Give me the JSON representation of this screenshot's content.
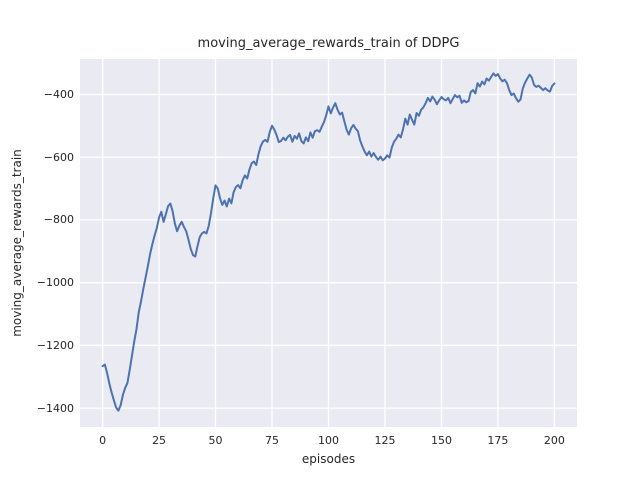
{
  "chart_data": {
    "type": "line",
    "title": "moving_average_rewards_train of DDPG",
    "xlabel": "episodes",
    "ylabel": "moving_average_rewards_train",
    "xlim": [
      -10,
      210
    ],
    "ylim": [
      -1460,
      -287
    ],
    "xticks": [
      0,
      25,
      50,
      75,
      100,
      125,
      150,
      175,
      200
    ],
    "yticks": [
      -1400,
      -1200,
      -1000,
      -800,
      -600,
      -400
    ],
    "grid": true,
    "legend": false,
    "style": {
      "figure_bg": "#FFFFFF",
      "axes_bg": "#EAEAF2",
      "grid_color": "#FFFFFF",
      "line_color": "#4C72B0",
      "text_color": "#262626"
    },
    "series": [
      {
        "name": "moving_average_rewards_train",
        "x": [
          0,
          1,
          2,
          3,
          4,
          5,
          6,
          7,
          8,
          9,
          10,
          11,
          12,
          13,
          14,
          15,
          16,
          17,
          18,
          19,
          20,
          21,
          22,
          23,
          24,
          25,
          26,
          27,
          28,
          29,
          30,
          31,
          32,
          33,
          34,
          35,
          36,
          37,
          38,
          39,
          40,
          41,
          42,
          43,
          44,
          45,
          46,
          47,
          48,
          49,
          50,
          51,
          52,
          53,
          54,
          55,
          56,
          57,
          58,
          59,
          60,
          61,
          62,
          63,
          64,
          65,
          66,
          67,
          68,
          69,
          70,
          71,
          72,
          73,
          74,
          75,
          76,
          77,
          78,
          79,
          80,
          81,
          82,
          83,
          84,
          85,
          86,
          87,
          88,
          89,
          90,
          91,
          92,
          93,
          94,
          95,
          96,
          97,
          98,
          99,
          100,
          101,
          102,
          103,
          104,
          105,
          106,
          107,
          108,
          109,
          110,
          111,
          112,
          113,
          114,
          115,
          116,
          117,
          118,
          119,
          120,
          121,
          122,
          123,
          124,
          125,
          126,
          127,
          128,
          129,
          130,
          131,
          132,
          133,
          134,
          135,
          136,
          137,
          138,
          139,
          140,
          141,
          142,
          143,
          144,
          145,
          146,
          147,
          148,
          149,
          150,
          151,
          152,
          153,
          154,
          155,
          156,
          157,
          158,
          159,
          160,
          161,
          162,
          163,
          164,
          165,
          166,
          167,
          168,
          169,
          170,
          171,
          172,
          173,
          174,
          175,
          176,
          177,
          178,
          179,
          180,
          181,
          182,
          183,
          184,
          185,
          186,
          187,
          188,
          189,
          190,
          191,
          192,
          193,
          194,
          195,
          196,
          197,
          198,
          199,
          200
        ],
        "y": [
          -1266,
          -1261,
          -1288,
          -1322,
          -1350,
          -1375,
          -1398,
          -1408,
          -1390,
          -1358,
          -1335,
          -1320,
          -1278,
          -1232,
          -1188,
          -1148,
          -1095,
          -1060,
          -1020,
          -985,
          -948,
          -910,
          -878,
          -851,
          -826,
          -792,
          -774,
          -806,
          -782,
          -756,
          -748,
          -772,
          -812,
          -836,
          -818,
          -806,
          -822,
          -836,
          -862,
          -892,
          -912,
          -917,
          -884,
          -855,
          -843,
          -838,
          -843,
          -818,
          -778,
          -730,
          -690,
          -700,
          -732,
          -752,
          -738,
          -757,
          -732,
          -747,
          -712,
          -695,
          -689,
          -699,
          -673,
          -658,
          -668,
          -640,
          -619,
          -614,
          -625,
          -590,
          -565,
          -550,
          -545,
          -551,
          -519,
          -500,
          -512,
          -529,
          -552,
          -548,
          -538,
          -546,
          -535,
          -529,
          -551,
          -532,
          -541,
          -524,
          -549,
          -556,
          -537,
          -549,
          -521,
          -538,
          -517,
          -514,
          -519,
          -503,
          -488,
          -466,
          -438,
          -460,
          -442,
          -428,
          -448,
          -464,
          -458,
          -485,
          -512,
          -528,
          -508,
          -497,
          -509,
          -517,
          -546,
          -566,
          -582,
          -594,
          -582,
          -598,
          -587,
          -599,
          -608,
          -598,
          -610,
          -604,
          -594,
          -601,
          -569,
          -551,
          -541,
          -528,
          -537,
          -510,
          -477,
          -496,
          -464,
          -481,
          -496,
          -459,
          -468,
          -449,
          -441,
          -428,
          -411,
          -422,
          -407,
          -417,
          -431,
          -419,
          -408,
          -415,
          -419,
          -411,
          -428,
          -414,
          -402,
          -409,
          -404,
          -427,
          -419,
          -425,
          -421,
          -392,
          -386,
          -397,
          -364,
          -375,
          -359,
          -368,
          -349,
          -356,
          -344,
          -333,
          -341,
          -335,
          -349,
          -358,
          -353,
          -364,
          -386,
          -402,
          -397,
          -412,
          -423,
          -416,
          -381,
          -363,
          -349,
          -337,
          -346,
          -370,
          -376,
          -372,
          -379,
          -386,
          -380,
          -387,
          -391,
          -373,
          -365
        ]
      }
    ]
  }
}
